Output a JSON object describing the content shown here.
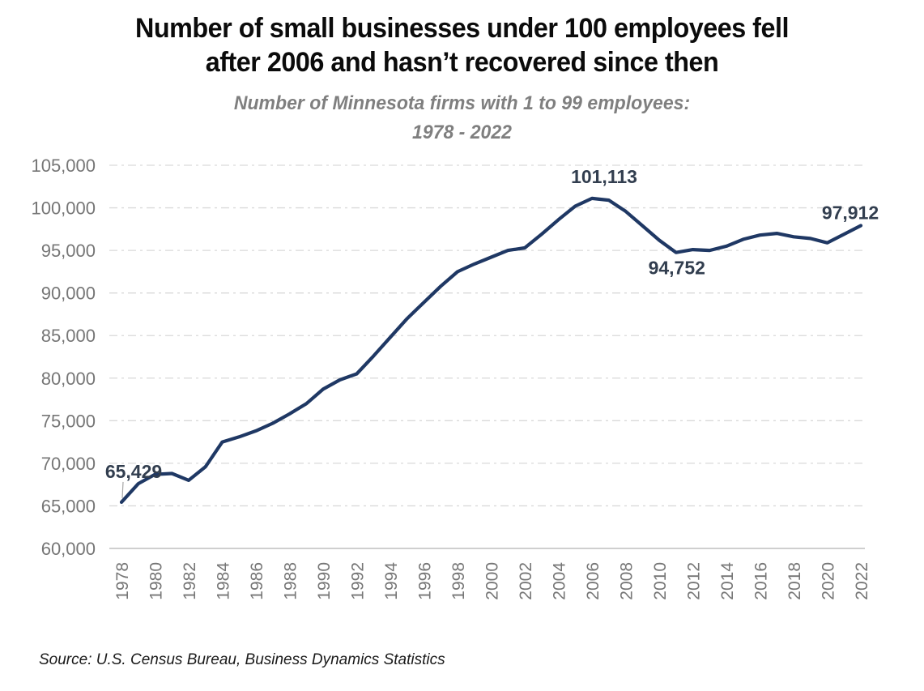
{
  "title": {
    "line1": "Number of small businesses under 100 employees fell",
    "line2": "after 2006 and hasn’t recovered since then"
  },
  "subtitle": {
    "line1": "Number of Minnesota firms with 1 to 99 employees:",
    "line2": "1978 - 2022"
  },
  "source": "Source: U.S. Census Bureau, Business Dynamics Statistics",
  "chart_data": {
    "type": "line",
    "series_name": "Minnesota firms with 1 to 99 employees",
    "x": [
      1978,
      1979,
      1980,
      1981,
      1982,
      1983,
      1984,
      1985,
      1986,
      1987,
      1988,
      1989,
      1990,
      1991,
      1992,
      1993,
      1994,
      1995,
      1996,
      1997,
      1998,
      1999,
      2000,
      2001,
      2002,
      2003,
      2004,
      2005,
      2006,
      2007,
      2008,
      2009,
      2010,
      2011,
      2012,
      2013,
      2014,
      2015,
      2016,
      2017,
      2018,
      2019,
      2020,
      2021,
      2022
    ],
    "values": [
      65429,
      67600,
      68700,
      68800,
      68000,
      69600,
      72500,
      73100,
      73800,
      74700,
      75800,
      77000,
      78700,
      79800,
      80500,
      82600,
      84800,
      87000,
      88900,
      90800,
      92500,
      93400,
      94200,
      95000,
      95300,
      96900,
      98600,
      100200,
      101113,
      100900,
      99600,
      97900,
      96200,
      94752,
      95100,
      95000,
      95500,
      96300,
      96800,
      97000,
      96600,
      96400,
      95900,
      96900,
      97912
    ],
    "ylim": [
      60000,
      105000
    ],
    "ytick_step": 5000,
    "xtick_step": 2,
    "grid": "horizontal-dashed",
    "legend": "none",
    "annotations": [
      {
        "year": 1978,
        "label": "65,429",
        "placement": "above",
        "leader": true
      },
      {
        "year": 2006,
        "label": "101,113",
        "placement": "above",
        "leader": false
      },
      {
        "year": 2011,
        "label": "94,752",
        "placement": "below",
        "leader": false
      },
      {
        "year": 2022,
        "label": "97,912",
        "placement": "above",
        "leader": false
      }
    ]
  },
  "colors": {
    "line": "#1f3864",
    "gridline": "#d9d9d9",
    "axis_line": "#bfbfbf",
    "tick_label": "#767676",
    "data_label": "#323e4f",
    "leader_line": "#a6a6a6",
    "title": "#0b0b0b",
    "subtitle": "#7f7f7f"
  }
}
